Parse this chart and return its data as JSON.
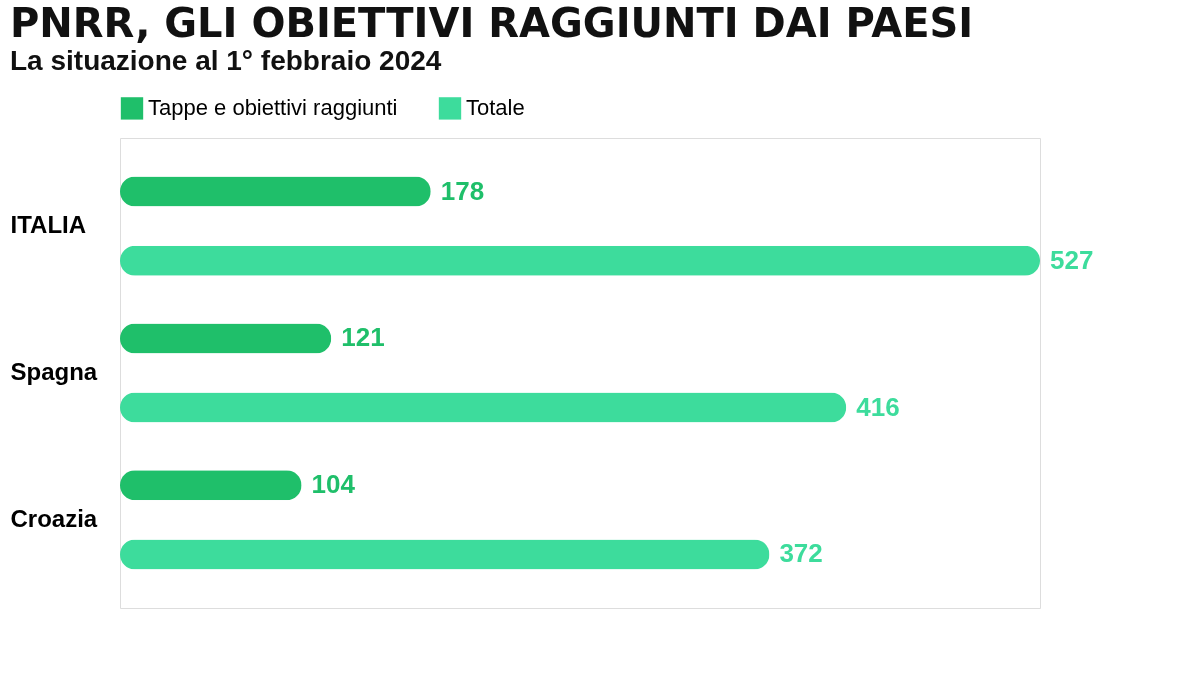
{
  "chart_data": {
    "type": "bar",
    "orientation": "horizontal",
    "title": "PNRR, GLI OBIETTIVI RAGGIUNTI DAI PAESI",
    "subtitle": "La situazione al 1° febbraio 2024",
    "categories": [
      "ITALIA",
      "Spagna",
      "Croazia"
    ],
    "series": [
      {
        "name": "Tappe e obiettivi raggiunti",
        "color": "#1fbf6a",
        "values": [
          178,
          121,
          104
        ]
      },
      {
        "name": "Totale",
        "color": "#3ddc9c",
        "values": [
          527,
          416,
          372
        ]
      }
    ],
    "data_labels": true,
    "legend": "top"
  }
}
